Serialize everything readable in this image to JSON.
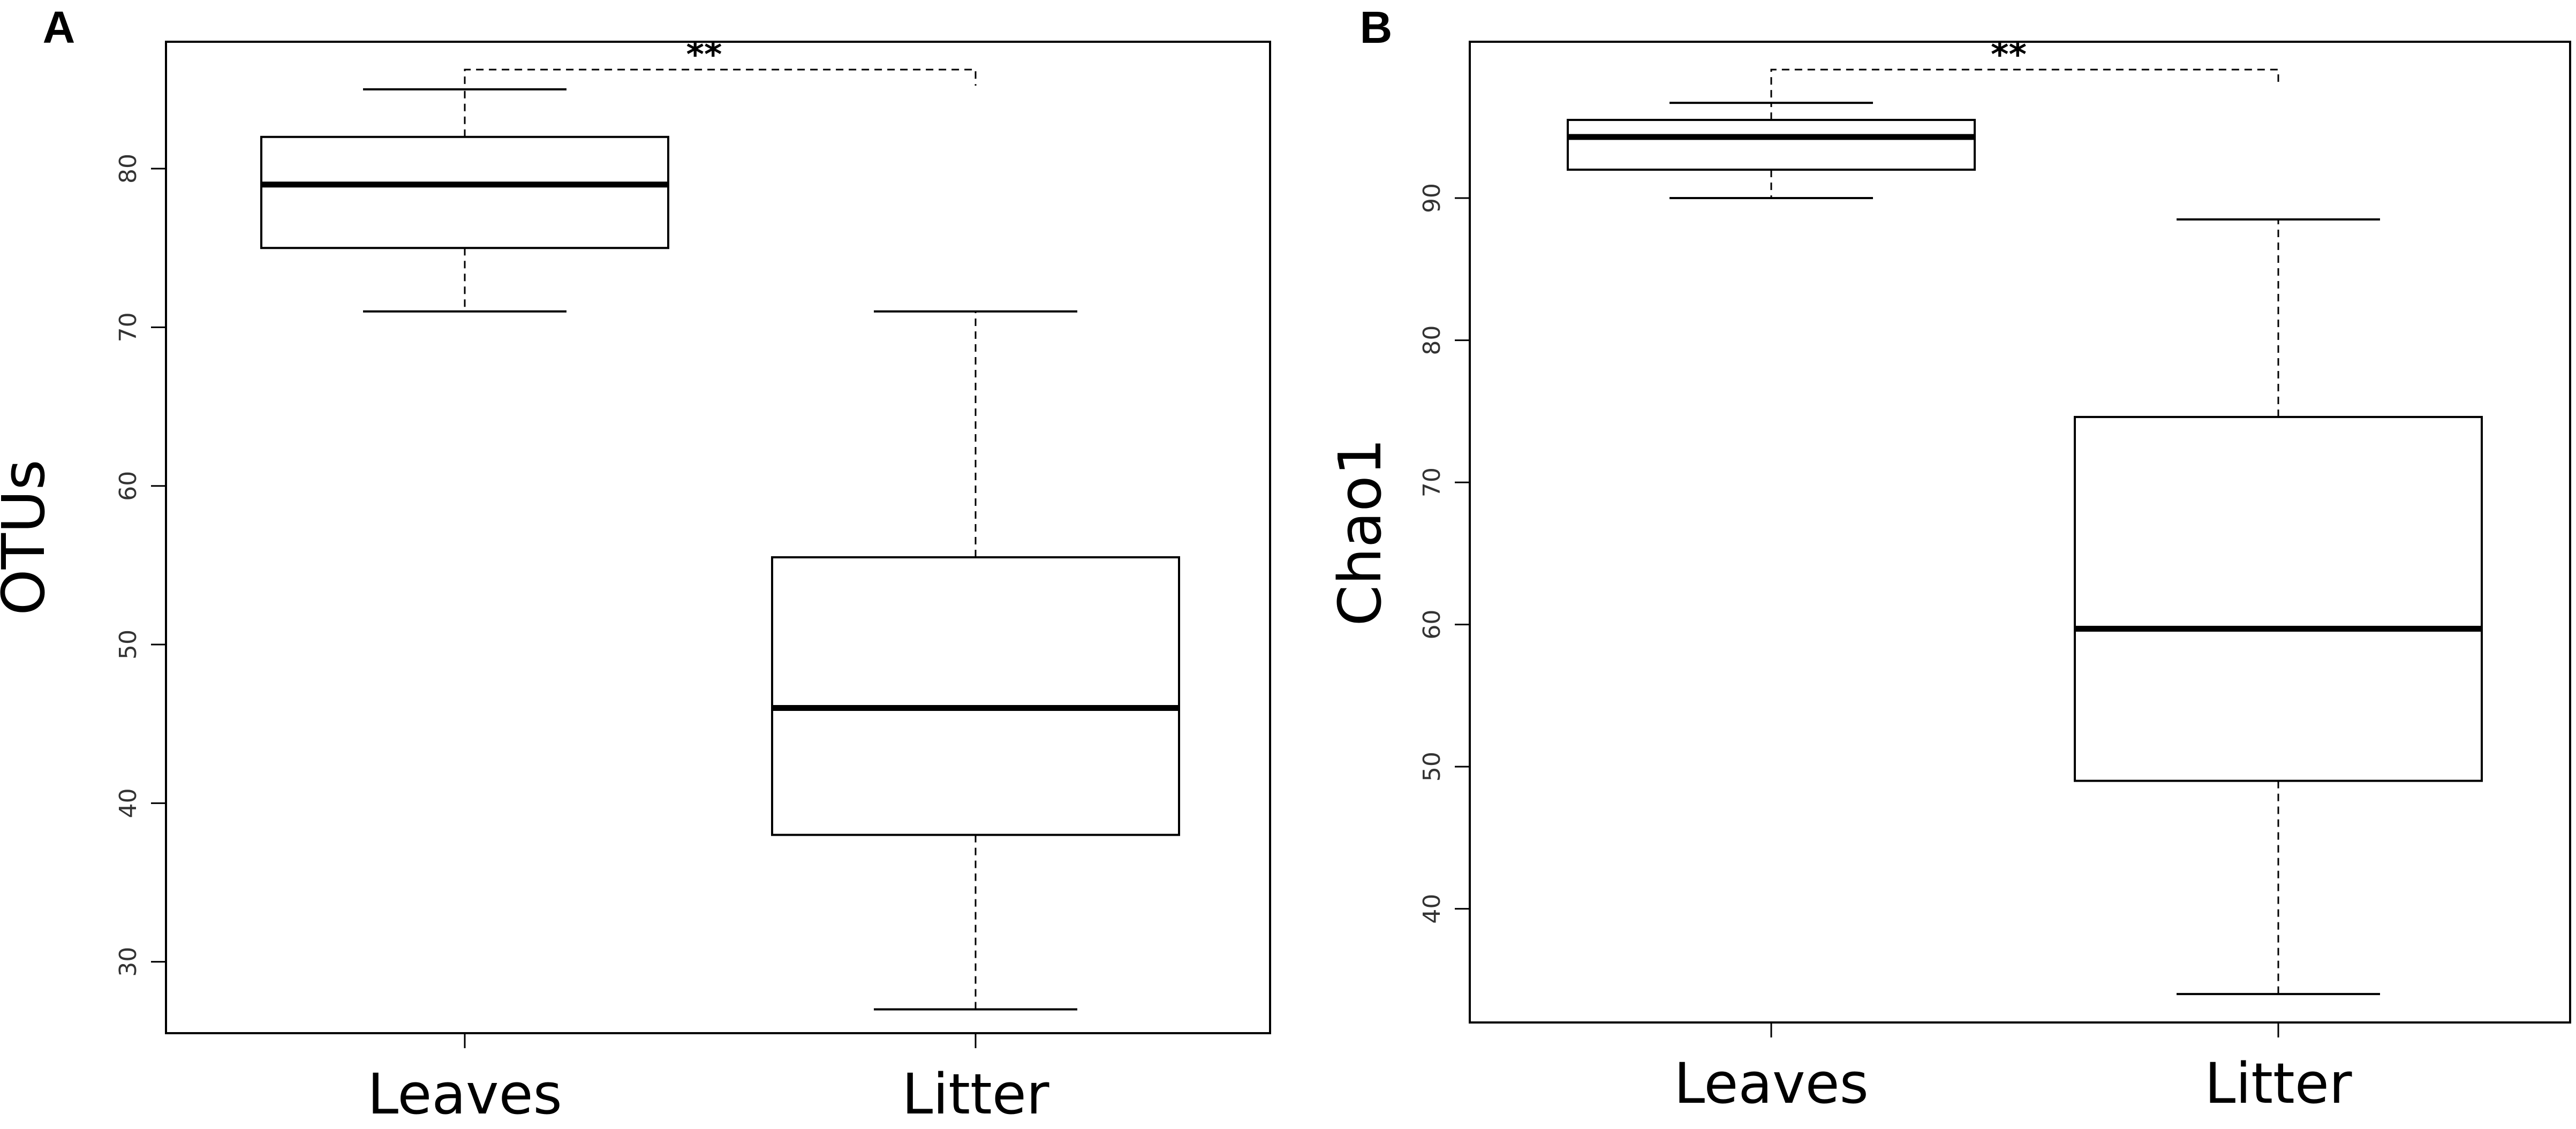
{
  "chart_data": [
    {
      "panel": "A",
      "type": "boxplot",
      "ylabel": "OTUs",
      "categories": [
        "Leaves",
        "Litter"
      ],
      "yticks": [
        30,
        40,
        50,
        60,
        70,
        80
      ],
      "ylim": [
        25.5,
        88
      ],
      "boxes": [
        {
          "category": "Leaves",
          "min": 71,
          "q1": 75,
          "median": 79,
          "q3": 82,
          "max": 85
        },
        {
          "category": "Litter",
          "min": 27,
          "q1": 38,
          "median": 46,
          "q3": 55.5,
          "max": 71
        }
      ],
      "significance": "**",
      "grid": false
    },
    {
      "panel": "B",
      "type": "boxplot",
      "ylabel": "Chao1",
      "categories": [
        "Leaves",
        "Litter"
      ],
      "yticks": [
        40,
        50,
        60,
        70,
        80,
        90
      ],
      "ylim": [
        32,
        101
      ],
      "boxes": [
        {
          "category": "Leaves",
          "min": 90,
          "q1": 92,
          "median": 94.3,
          "q3": 95.5,
          "max": 96.7
        },
        {
          "category": "Litter",
          "min": 34,
          "q1": 49,
          "median": 59.7,
          "q3": 74.6,
          "max": 88.5
        }
      ],
      "significance": "**",
      "grid": false
    }
  ]
}
